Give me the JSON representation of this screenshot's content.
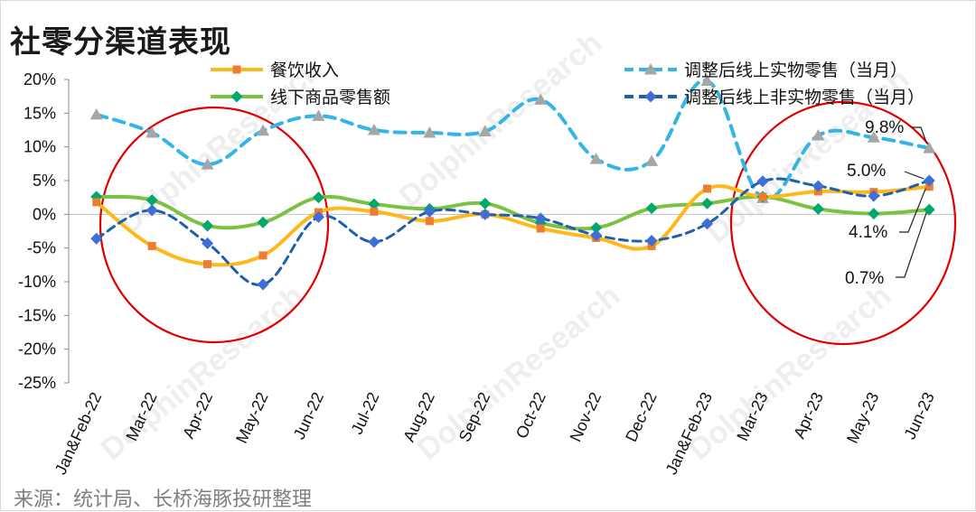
{
  "title": "社零分渠道表现",
  "source": "来源：统计局、长桥海豚投研整理",
  "watermark": "DolphinResearch",
  "chart_data": {
    "type": "line",
    "categories": [
      "Jan&Feb-22",
      "Mar-22",
      "Apr-22",
      "May-22",
      "Jun-22",
      "Jul-22",
      "Aug-22",
      "Sep-22",
      "Oct-22",
      "Nov-22",
      "Dec-22",
      "Jan&Feb-23",
      "Mar-23",
      "Apr-23",
      "May-23",
      "Jun-23"
    ],
    "ylim": [
      -25,
      20
    ],
    "yticks": [
      "20%",
      "15%",
      "10%",
      "5%",
      "0%",
      "-5%",
      "-10%",
      "-15%",
      "-20%",
      "-25%"
    ],
    "ytick_values": [
      20,
      15,
      10,
      5,
      0,
      -5,
      -10,
      -15,
      -20,
      -25
    ],
    "series": [
      {
        "name": "餐饮收入",
        "color": "#ffb81c",
        "marker_color": "#ed7d31",
        "marker": "square",
        "dash": "solid",
        "values": [
          1.8,
          -4.7,
          -7.4,
          -6.1,
          0.3,
          0.4,
          -1.0,
          0.0,
          -2.1,
          -3.5,
          -4.7,
          3.8,
          2.6,
          3.4,
          3.3,
          4.1
        ]
      },
      {
        "name": "线下商品零售额",
        "color": "#7cc242",
        "marker_color": "#00a86b",
        "marker": "diamond",
        "dash": "solid",
        "values": [
          2.6,
          2.1,
          -1.7,
          -1.2,
          2.5,
          1.5,
          0.8,
          1.6,
          -1.3,
          -2.0,
          0.9,
          1.6,
          2.6,
          0.8,
          0.1,
          0.7
        ]
      },
      {
        "name": "调整后线上实物零售（当月）",
        "color": "#33b5e5",
        "marker_color": "#a6a6a6",
        "marker": "triangle",
        "dash": "dash",
        "values": [
          14.8,
          12.1,
          7.4,
          12.4,
          14.6,
          12.5,
          12.1,
          12.3,
          17.0,
          8.2,
          7.9,
          19.8,
          2.4,
          11.7,
          11.4,
          9.8
        ]
      },
      {
        "name": "调整后线上非实物零售（当月）",
        "color": "#1f5fae",
        "marker_color": "#3d6fd6",
        "marker": "diamond",
        "dash": "dash",
        "values": [
          -3.6,
          0.6,
          -4.3,
          -10.4,
          -0.4,
          -4.1,
          0.4,
          0.0,
          -0.6,
          -3.1,
          -3.9,
          -1.4,
          4.9,
          4.2,
          2.7,
          5.0
        ]
      }
    ],
    "annotations": [
      "9.8%",
      "5.0%",
      "4.1%",
      "0.7%"
    ]
  }
}
